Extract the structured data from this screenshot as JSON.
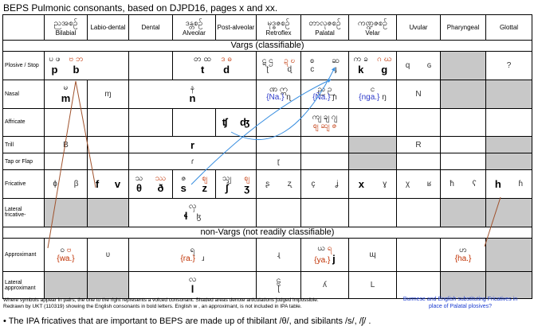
{
  "title": "BEPS Pulmonic consonants, based on DJPD16, pages x and xx.",
  "columns": {
    "bilabial": {
      "mya": "ညအစဉ်",
      "label": "Bilabial"
    },
    "labiodental": {
      "label": "Labio-dental"
    },
    "dental": {
      "label": "Dental"
    },
    "alveolar": {
      "mya": "ဒန္တစဉ်",
      "label": "Alveolar"
    },
    "postalveolar": {
      "label": "Post-alveolar"
    },
    "retroflex": {
      "mya": "မုဒ္ဓဇစဉ်",
      "label": "Retroflex"
    },
    "palatal": {
      "mya": "တာလုဇစဉ်",
      "label": "Palatal"
    },
    "velar": {
      "mya": "ကဏ္ဍဇစဉ်",
      "label": "Velar"
    },
    "uvular": {
      "label": "Uvular"
    },
    "pharyngeal": {
      "label": "Pharyngeal"
    },
    "glottal": {
      "label": "Glottal"
    }
  },
  "sections": {
    "vargs": "Vargs (classifiable)",
    "nonvargs": "non-Vargs (not readily classifiable)"
  },
  "rows": {
    "plosive": "Plosive / Stop",
    "nasal": "Nasal",
    "affricate": "Affricate",
    "trill": "Trill",
    "tap": "Tap or Flap",
    "fricative": "Fricative",
    "latfric": "Lateral fricative-",
    "approximant": "Approximant",
    "latapprox": "Lateral approximant"
  },
  "cells": {
    "plosive": {
      "bil_m": "ပ ဖ",
      "bil_mr": "ဗ ဘ",
      "bil_1": "p",
      "bil_2": "b",
      "alv_m": "တ ထ",
      "alv_mr": "ဒ ဓ",
      "alv_1": "t",
      "alv_2": "d",
      "ret_m": "ဋ ဌ",
      "ret_mr": "ဍ ဎ",
      "ret_1": "ʈ",
      "ret_2": "ɖ",
      "pal_m1": "စ",
      "pal_m2": "ဆ",
      "pal_1": "c",
      "pal_2": "ɟ",
      "vel_m": "က ခ",
      "vel_mr": "ဂ ဃ",
      "vel_1": "k",
      "vel_2": "g",
      "uv_1": "q",
      "uv_2": "ɢ",
      "glot": "?"
    },
    "nasal": {
      "bil_m": "မ",
      "bil_1": "m",
      "lab": "ɱ",
      "alv_m": "န",
      "alv_1": "n",
      "ret_m": "ဏ ဣ",
      "ret_1": "{Na.}",
      "ret_2": "ɳ",
      "pal_m": "ည ဉ",
      "pal_1": "{Ña.}",
      "pal_2": "ɲ",
      "vel_m": "င",
      "vel_1": "{nga.}",
      "vel_2": "ŋ",
      "uv": "N"
    },
    "affricate": {
      "pa1": "ʧ",
      "pa2": "ʤ",
      "pal_m": "ကျ ချ ဂျ",
      "pal_mr": "ဈ ဆျ ဇ"
    },
    "trill": {
      "bil": "B",
      "alv": "r",
      "uv": "R"
    },
    "tap": {
      "alv": "ɾ",
      "ret": "ɽ"
    },
    "fricative": {
      "bil_1": "ɸ",
      "bil_2": "β",
      "lab_1": "f",
      "lab_2": "v",
      "den_m": "သ",
      "den_mr": "ဿ",
      "den_1": "θ",
      "den_2": "ð",
      "alv_m": "ဇ",
      "alv_mr": "ဈ",
      "alv_1": "s",
      "alv_2": "z",
      "pa_m": "သျှ",
      "pa_mr": "ဈ",
      "pa_1": "ʃ",
      "pa_2": "ʒ",
      "ret_1": "ʂ",
      "ret_2": "ʐ",
      "pal_1": "ç",
      "pal_2": "ʝ",
      "vel_1": "x",
      "vel_2": "ɣ",
      "uv_1": "χ",
      "uv_2": "ʁ",
      "ph_1": "ħ",
      "ph_2": "ʕ",
      "gl_1": "h",
      "gl_2": "ɦ"
    },
    "latfric": {
      "alv_m": "လှ",
      "alv_1": "ɬ",
      "alv_2": "ɮ"
    },
    "approximant": {
      "bil_m": "ဝ",
      "bil_mr": "ဗ",
      "bil_1": "{wa.}",
      "lab": "ʋ",
      "alv_m": "ရ",
      "alv_1": "{ra.}",
      "alv_2": "ɹ",
      "ret": "ɻ",
      "pal_m": "ယ",
      "pal_mr": "ရ",
      "pal_1": "{ya.}",
      "pal_2": "j",
      "vel": "ɰ",
      "ph_m": "ဟ",
      "ph_1": "{ha.}"
    },
    "latapprox": {
      "alv_m": "လ",
      "alv_1": "l",
      "ret_m": "ဠ",
      "ret_1": "ɭ",
      "pal": "ʎ",
      "vel": "L"
    }
  },
  "notes": {
    "l1": "Where symbols appear in pairs, the one to the right represents a voiced consonant. Shaded areas denote articulations judged impossible.",
    "l2": "Redrawn by UKT (110319) showing the English consonants in bold letters. English w , an approximant, is not included in IPA table.",
    "blue": "Burmese and English substituting Fricatives in place of Palatal plosives?",
    "bullet": "• The IPA fricatives that are important to BEPS are made up of thibilant /θ/, and sibilants /s/, /ʃ/ ."
  },
  "colors": {
    "gray": "#c8c8c8",
    "red": "#c03000",
    "blue": "#2d3ac9",
    "arrow_blue": "#3a8fe0",
    "arrow_brown": "#a0522d"
  }
}
